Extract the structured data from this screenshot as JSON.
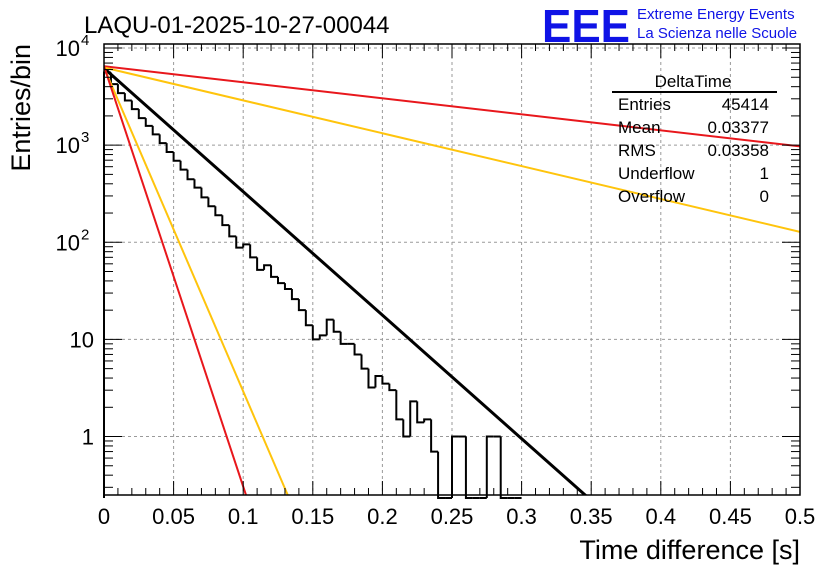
{
  "chart_data": {
    "type": "histogram",
    "title": "LAQU-01-2025-10-27-00044",
    "xlabel": "Time difference [s]",
    "ylabel": "Entries/bin",
    "xlim": [
      0,
      0.5
    ],
    "ylim": [
      0.25,
      11000
    ],
    "yscale": "log",
    "grid": true,
    "x_ticks": [
      {
        "v": 0,
        "label": "0"
      },
      {
        "v": 0.05,
        "label": "0.05"
      },
      {
        "v": 0.1,
        "label": "0.1"
      },
      {
        "v": 0.15,
        "label": "0.15"
      },
      {
        "v": 0.2,
        "label": "0.2"
      },
      {
        "v": 0.25,
        "label": "0.25"
      },
      {
        "v": 0.3,
        "label": "0.3"
      },
      {
        "v": 0.35,
        "label": "0.35"
      },
      {
        "v": 0.4,
        "label": "0.4"
      },
      {
        "v": 0.45,
        "label": "0.45"
      },
      {
        "v": 0.5,
        "label": "0.5"
      }
    ],
    "y_ticks": [
      {
        "v": 1,
        "label": "1"
      },
      {
        "v": 10,
        "label": "10"
      },
      {
        "v": 100,
        "base": "10",
        "exp": "2"
      },
      {
        "v": 1000,
        "base": "10",
        "exp": "3"
      },
      {
        "v": 10000,
        "base": "10",
        "exp": "4"
      }
    ],
    "histogram": {
      "name": "DeltaTime",
      "bin_width": 0.005,
      "bin_start": 0,
      "values": [
        5600,
        4250,
        3430,
        2880,
        2350,
        1900,
        1580,
        1290,
        1050,
        850,
        690,
        560,
        445,
        365,
        290,
        235,
        190,
        150,
        115,
        88,
        95,
        70,
        52,
        58,
        44,
        38,
        33,
        26,
        20,
        14,
        10,
        11,
        16,
        12,
        9,
        9,
        7,
        5,
        3.2,
        4.2,
        3.5,
        3.0,
        1.5,
        1.0,
        2.3,
        1.4,
        1.5,
        0.7,
        0.15,
        0.15,
        1.0,
        1.0,
        0.1,
        0.1,
        0.15,
        1.0,
        1.0,
        0.1,
        0.1,
        0.1
      ]
    },
    "series": [
      {
        "name": "fit",
        "color": "#000000",
        "x": [
          0,
          0.35
        ],
        "y": [
          6200,
          0.22
        ]
      },
      {
        "name": "red-slow",
        "color": "#e8171c",
        "x": [
          0,
          0.5
        ],
        "y": [
          6500,
          970
        ]
      },
      {
        "name": "yellow-slow",
        "color": "#ffc40c",
        "x": [
          0,
          0.5
        ],
        "y": [
          6300,
          128
        ]
      },
      {
        "name": "yellow-fast",
        "color": "#ffc40c",
        "x": [
          0,
          0.132
        ],
        "y": [
          6300,
          0.25
        ]
      },
      {
        "name": "red-fast",
        "color": "#e8171c",
        "x": [
          0,
          0.102
        ],
        "y": [
          6500,
          0.25
        ]
      }
    ],
    "stats": {
      "title": "DeltaTime",
      "rows": [
        {
          "label": "Entries",
          "value": "45414"
        },
        {
          "label": "Mean",
          "value": "0.03377"
        },
        {
          "label": "RMS",
          "value": "0.03358"
        },
        {
          "label": "Underflow",
          "value": "1"
        },
        {
          "label": "Overflow",
          "value": "0"
        }
      ]
    },
    "logo": {
      "text": "EEE",
      "line1": "Extreme Energy Events",
      "line2": "La Scienza nelle Scuole",
      "color": "#0f13e6"
    }
  }
}
